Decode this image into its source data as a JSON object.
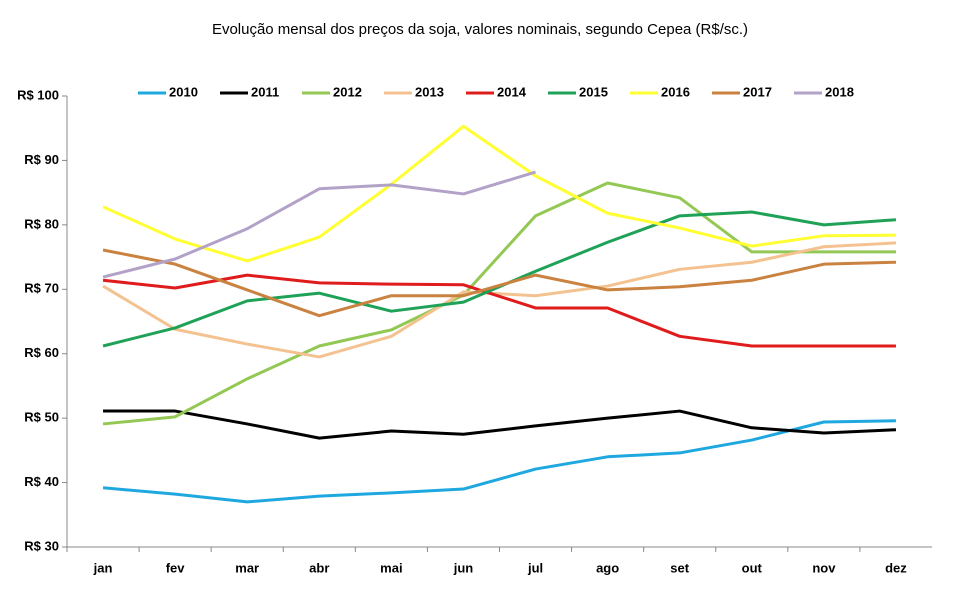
{
  "chart_data": {
    "type": "line",
    "title": "Evolução mensal dos preços da soja, valores nominais, segundo Cepea (R$/sc.)",
    "categories": [
      "jan",
      "fev",
      "mar",
      "abr",
      "mai",
      "jun",
      "jul",
      "ago",
      "set",
      "out",
      "nov",
      "dez"
    ],
    "series": [
      {
        "name": "2010",
        "color": "#1fa8e0",
        "values": [
          39.2,
          38.2,
          37.0,
          37.9,
          38.4,
          39.0,
          42.1,
          44.0,
          44.6,
          46.6,
          49.4,
          49.6
        ]
      },
      {
        "name": "2011",
        "color": "#000000",
        "values": [
          51.1,
          51.1,
          49.1,
          46.9,
          48.0,
          47.5,
          48.8,
          50.0,
          51.1,
          48.5,
          47.7,
          48.2
        ]
      },
      {
        "name": "2012",
        "color": "#92c853",
        "values": [
          49.1,
          50.2,
          56.1,
          61.2,
          63.7,
          69.1,
          81.4,
          86.5,
          84.2,
          75.8,
          75.8,
          75.8
        ]
      },
      {
        "name": "2013",
        "color": "#f4c290",
        "values": [
          70.5,
          63.8,
          61.5,
          59.5,
          62.7,
          69.6,
          69.0,
          70.5,
          73.1,
          74.2,
          76.6,
          77.2
        ]
      },
      {
        "name": "2014",
        "color": "#e01b1b",
        "values": [
          71.4,
          70.2,
          72.2,
          71.0,
          70.8,
          70.7,
          67.1,
          67.1,
          62.7,
          61.2,
          61.2,
          61.2
        ]
      },
      {
        "name": "2015",
        "color": "#1fa257",
        "values": [
          61.2,
          64.0,
          68.2,
          69.4,
          66.6,
          68.0,
          72.8,
          77.3,
          81.4,
          82.0,
          80.0,
          80.8
        ]
      },
      {
        "name": "2016",
        "color": "#ffff33",
        "values": [
          82.8,
          77.8,
          74.4,
          78.1,
          86.3,
          95.3,
          87.6,
          81.8,
          79.5,
          76.7,
          78.3,
          78.4
        ]
      },
      {
        "name": "2017",
        "color": "#c9823f",
        "values": [
          76.1,
          73.9,
          69.9,
          65.9,
          69.0,
          69.0,
          72.2,
          69.9,
          70.4,
          71.4,
          73.9,
          74.2
        ]
      },
      {
        "name": "2018",
        "color": "#b3a2c8",
        "values": [
          71.9,
          74.7,
          79.4,
          85.6,
          86.2,
          84.8,
          88.2,
          null,
          null,
          null,
          null,
          null
        ]
      }
    ],
    "ylim": [
      30,
      100
    ],
    "yticks": [
      {
        "value": 30,
        "label": "R$ 30"
      },
      {
        "value": 40,
        "label": "R$ 40"
      },
      {
        "value": 50,
        "label": "R$ 50"
      },
      {
        "value": 60,
        "label": "R$ 60"
      },
      {
        "value": 70,
        "label": "R$ 70"
      },
      {
        "value": 80,
        "label": "R$ 80"
      },
      {
        "value": 90,
        "label": "R$ 90"
      },
      {
        "value": 100,
        "label": "R$ 100"
      }
    ],
    "grid": false,
    "legend": "top"
  }
}
